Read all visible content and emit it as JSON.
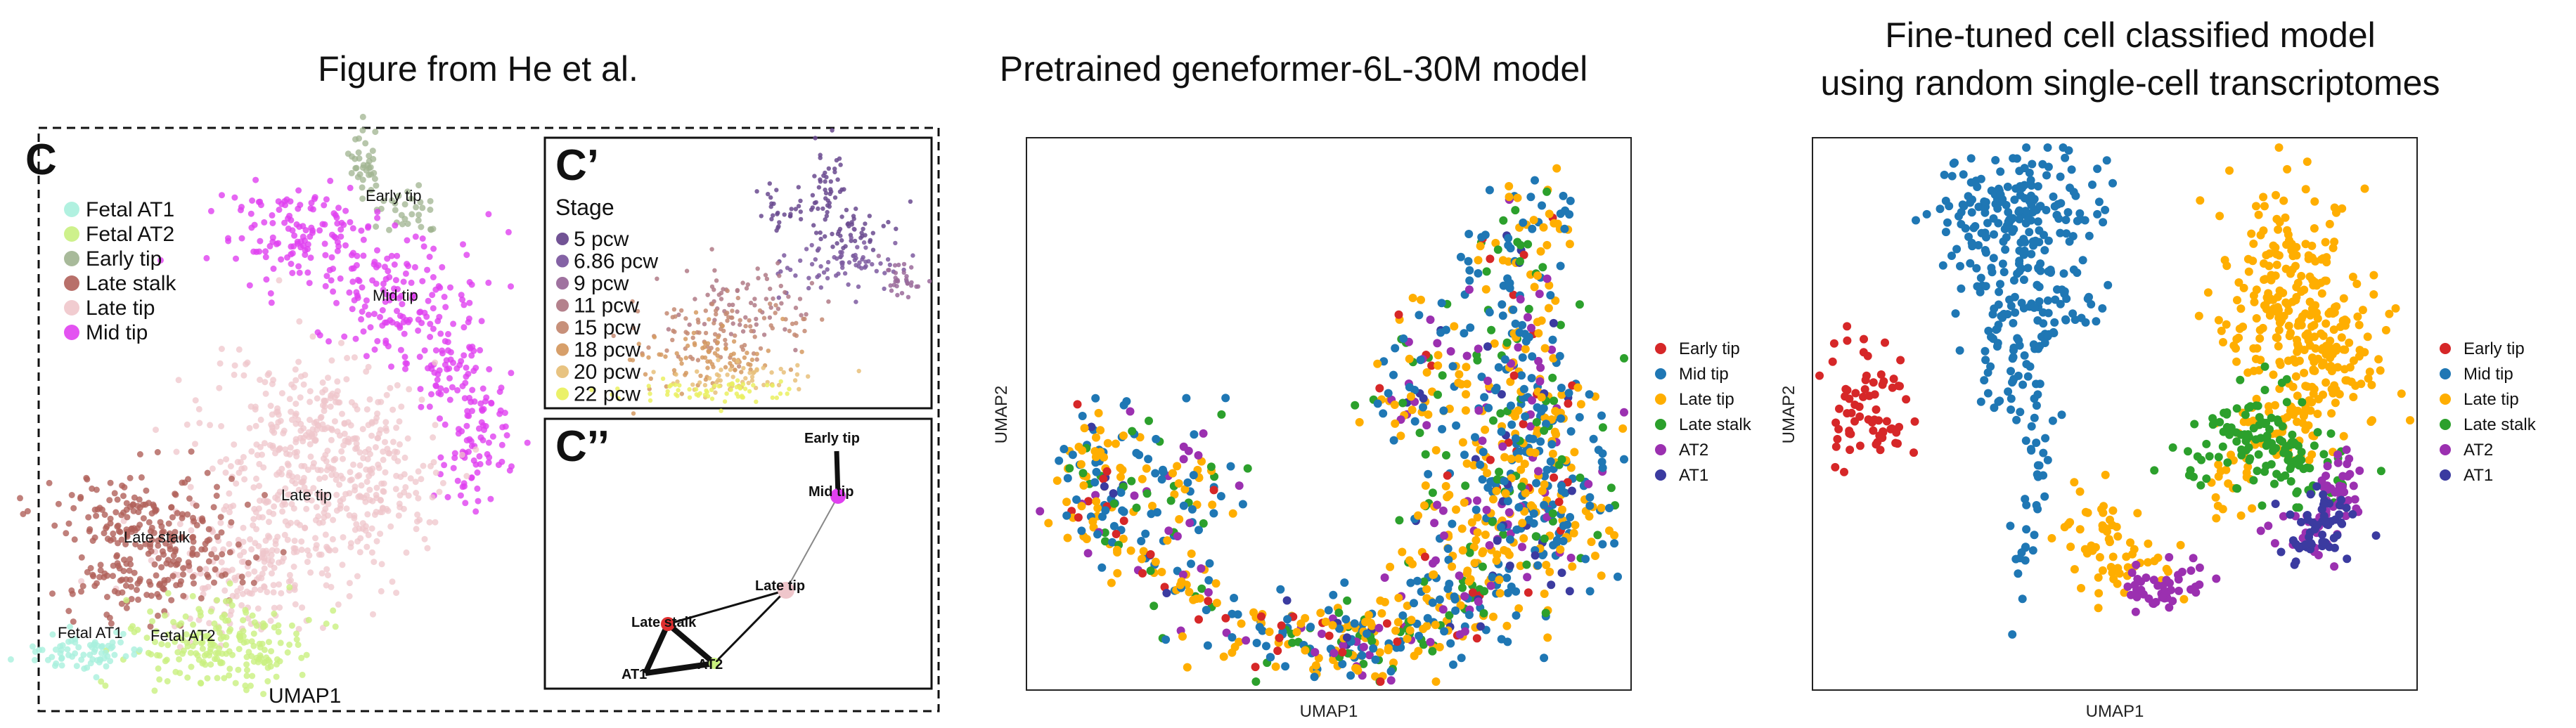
{
  "titles": {
    "left": "Figure from He et al.",
    "middle": "Pretrained geneformer-6L-30M model",
    "right_line1": "Fine-tuned cell classified model",
    "right_line2": "using random single-cell transcriptomes"
  },
  "he_figure": {
    "panel_c_label": "C",
    "panel_c_prime_label": "C’",
    "panel_c_dprime_label": "C’’",
    "xlabel": "UMAP1",
    "legend": [
      {
        "label": "Fetal AT1",
        "color": "#a9f0dd"
      },
      {
        "label": "Fetal AT2",
        "color": "#c9f07f"
      },
      {
        "label": "Early tip",
        "color": "#9fb38f"
      },
      {
        "label": "Late stalk",
        "color": "#b0605a"
      },
      {
        "label": "Late tip",
        "color": "#efc6cb"
      },
      {
        "label": "Mid tip",
        "color": "#e040f0"
      }
    ],
    "cluster_labels": [
      "Early tip",
      "Mid tip",
      "Late tip",
      "Late stalk",
      "Fetal AT1",
      "Fetal AT2"
    ],
    "stage_title": "Stage",
    "stages": [
      {
        "label": "5 pcw",
        "color": "#6a4a8f"
      },
      {
        "label": "6.86 pcw",
        "color": "#7d5aa0"
      },
      {
        "label": "9 pcw",
        "color": "#9a6a9a"
      },
      {
        "label": "11 pcw",
        "color": "#b07a86"
      },
      {
        "label": "15 pcw",
        "color": "#c48a73"
      },
      {
        "label": "18 pcw",
        "color": "#d59a62"
      },
      {
        "label": "20 pcw",
        "color": "#e7c07a"
      },
      {
        "label": "22 pcw",
        "color": "#eaf060"
      }
    ],
    "graph_nodes": [
      "Early tip",
      "Mid tip",
      "Late tip",
      "Late stalk",
      "AT1",
      "AT2"
    ]
  },
  "chart_data": [
    {
      "type": "scatter",
      "title": "Pretrained geneformer-6L-30M model",
      "xlabel": "UMAP1",
      "ylabel": "UMAP2",
      "grid": false,
      "legend_position": "right",
      "series": [
        {
          "name": "Early tip",
          "color": "#d62728"
        },
        {
          "name": "Mid tip",
          "color": "#1f77b4"
        },
        {
          "name": "Late tip",
          "color": "#ffae00"
        },
        {
          "name": "Late stalk",
          "color": "#2ca02c"
        },
        {
          "name": "AT2",
          "color": "#9b30b0"
        },
        {
          "name": "AT1",
          "color": "#3b3ba0"
        }
      ]
    },
    {
      "type": "scatter",
      "title": "Fine-tuned cell classified model using random single-cell transcriptomes",
      "xlabel": "UMAP1",
      "ylabel": "UMAP2",
      "grid": false,
      "legend_position": "right",
      "series": [
        {
          "name": "Early tip",
          "color": "#d62728"
        },
        {
          "name": "Mid tip",
          "color": "#1f77b4"
        },
        {
          "name": "Late tip",
          "color": "#ffae00"
        },
        {
          "name": "Late stalk",
          "color": "#2ca02c"
        },
        {
          "name": "AT2",
          "color": "#9b30b0"
        },
        {
          "name": "AT1",
          "color": "#3b3ba0"
        }
      ]
    }
  ]
}
